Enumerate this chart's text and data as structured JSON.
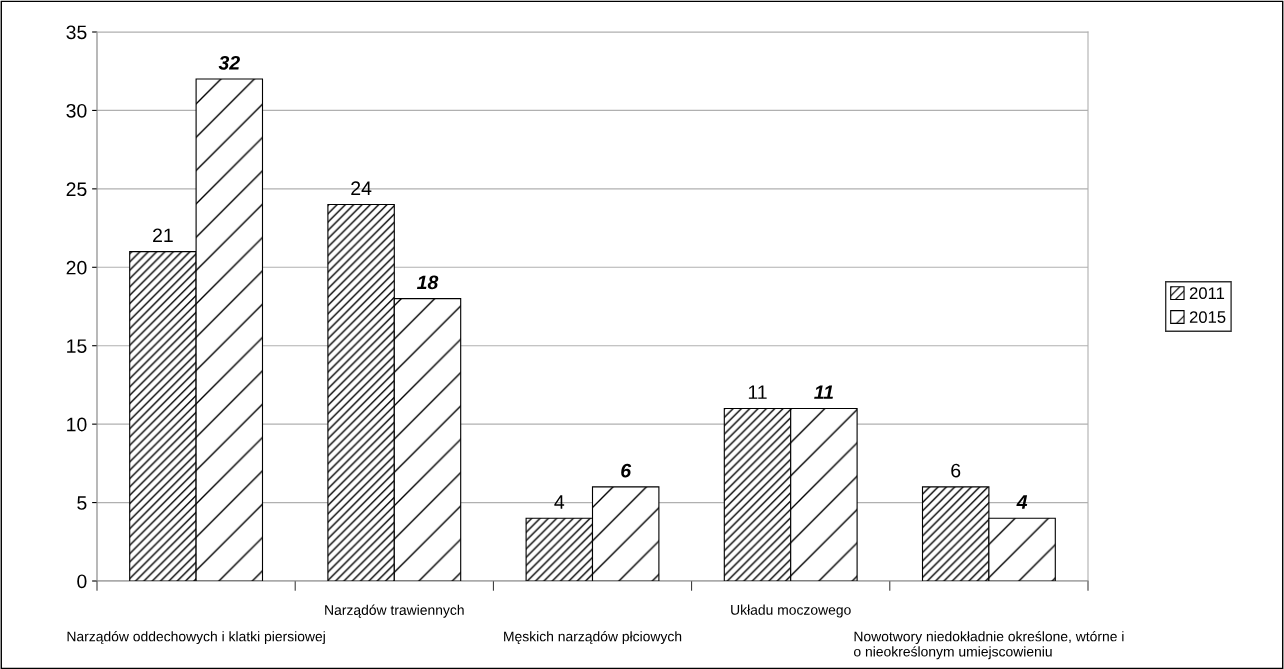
{
  "chart_data": {
    "type": "bar",
    "categories": [
      "Narządów oddechowych i klatki piersiowej",
      "Narządów trawiennych",
      "Męskich narządów płciowych",
      "Układu moczowego",
      "Nowotwory niedokładnie określone, wtórne i\no nieokreślonym umiejscowieniu"
    ],
    "series": [
      {
        "name": "2011",
        "color": "#000000",
        "values": [
          21,
          24,
          4,
          11,
          6
        ]
      },
      {
        "name": "2015",
        "color": "#000000",
        "values": [
          32,
          18,
          6,
          11,
          4
        ]
      }
    ],
    "ylim": [
      0,
      35
    ],
    "yticks": [
      0,
      5,
      10,
      15,
      20,
      25,
      30,
      35
    ],
    "grid": "y",
    "legend": "right",
    "data_labels": true
  }
}
